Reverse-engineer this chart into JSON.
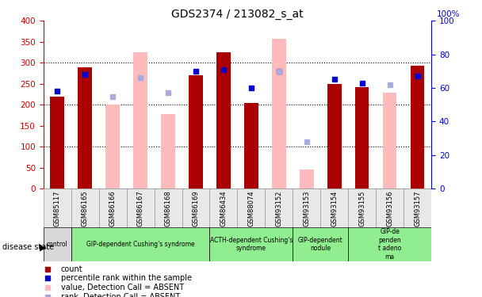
{
  "title": "GDS2374 / 213082_s_at",
  "samples": [
    "GSM85117",
    "GSM86165",
    "GSM86166",
    "GSM86167",
    "GSM86168",
    "GSM86169",
    "GSM86434",
    "GSM88074",
    "GSM93152",
    "GSM93153",
    "GSM93154",
    "GSM93155",
    "GSM93156",
    "GSM93157"
  ],
  "count_values": [
    220,
    290,
    null,
    null,
    null,
    270,
    325,
    205,
    null,
    null,
    250,
    242,
    null,
    292
  ],
  "absent_value_bars": [
    null,
    null,
    200,
    325,
    178,
    null,
    null,
    null,
    357,
    46,
    null,
    null,
    228,
    null
  ],
  "rank_dots_blue": [
    58,
    68,
    null,
    null,
    null,
    70,
    71,
    60,
    70,
    null,
    65,
    63,
    null,
    67
  ],
  "absent_rank_dots": [
    null,
    null,
    55,
    66,
    57,
    null,
    null,
    null,
    70,
    28,
    null,
    null,
    62,
    null
  ],
  "disease_groups": [
    {
      "label": "control",
      "start": 0,
      "end": 1,
      "color": "#d8d8d8"
    },
    {
      "label": "GIP-dependent Cushing's syndrome",
      "start": 1,
      "end": 6,
      "color": "#90ee90"
    },
    {
      "label": "ACTH-dependent Cushing's\nsyndrome",
      "start": 6,
      "end": 9,
      "color": "#90ee90"
    },
    {
      "label": "GIP-dependent\nnodule",
      "start": 9,
      "end": 11,
      "color": "#90ee90"
    },
    {
      "label": "GIP-de\npenden\nt adeno\nma",
      "start": 11,
      "end": 14,
      "color": "#90ee90"
    }
  ],
  "ylim_left": [
    0,
    400
  ],
  "ylim_right": [
    0,
    100
  ],
  "count_color": "#aa0000",
  "absent_value_color": "#ffbbbb",
  "rank_dot_color": "#0000cc",
  "absent_rank_dot_color": "#aaaadd",
  "grid_color": "#000000",
  "title_fontsize": 10,
  "axis_color_left": "#cc0000",
  "axis_color_right": "#0000cc",
  "bar_width": 0.5
}
